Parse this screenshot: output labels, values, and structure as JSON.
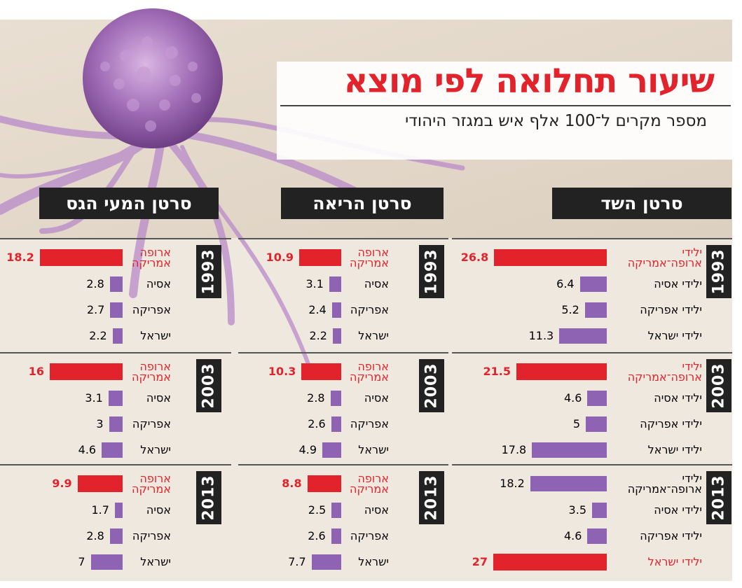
{
  "title": "שיעור תחלואה לפי מוצא",
  "subtitle": "מספר מקרים ל־100 אלף איש במגזר היהודי",
  "colors": {
    "red": "#e3232c",
    "purple": "#8e63b3",
    "dark": "#222222"
  },
  "chart_data": [
    {
      "type": "bar",
      "title": "סרטן השד",
      "panels": [
        {
          "year": "1993",
          "rows": [
            {
              "label": "ילידי ארופה־אמריקה",
              "value": 26.8,
              "highlight": true
            },
            {
              "label": "ילידי אסיה",
              "value": 6.4,
              "highlight": false
            },
            {
              "label": "ילידי אפריקה",
              "value": 5.2,
              "highlight": false
            },
            {
              "label": "ילידי ישראל",
              "value": 11.3,
              "highlight": false
            }
          ]
        },
        {
          "year": "2003",
          "rows": [
            {
              "label": "ילידי ארופה־אמריקה",
              "value": 21.5,
              "highlight": true
            },
            {
              "label": "ילידי אסיה",
              "value": 4.6,
              "highlight": false
            },
            {
              "label": "ילידי אפריקה",
              "value": 5,
              "highlight": false
            },
            {
              "label": "ילידי ישראל",
              "value": 17.8,
              "highlight": false
            }
          ]
        },
        {
          "year": "2013",
          "rows": [
            {
              "label": "ילידי ארופה־אמריקה",
              "value": 18.2,
              "highlight": false
            },
            {
              "label": "ילידי אסיה",
              "value": 3.5,
              "highlight": false
            },
            {
              "label": "ילידי אפריקה",
              "value": 4.6,
              "highlight": false
            },
            {
              "label": "ילידי ישראל",
              "value": 27,
              "highlight": true
            }
          ]
        }
      ]
    },
    {
      "type": "bar",
      "title": "סרטן הריאה",
      "panels": [
        {
          "year": "1993",
          "rows": [
            {
              "label": "ארופה אמריקה",
              "value": 10.9,
              "highlight": true
            },
            {
              "label": "אסיה",
              "value": 3.1,
              "highlight": false
            },
            {
              "label": "אפריקה",
              "value": 2.4,
              "highlight": false
            },
            {
              "label": "ישראל",
              "value": 2.2,
              "highlight": false
            }
          ]
        },
        {
          "year": "2003",
          "rows": [
            {
              "label": "ארופה אמריקה",
              "value": 10.3,
              "highlight": true
            },
            {
              "label": "אסיה",
              "value": 2.8,
              "highlight": false
            },
            {
              "label": "אפריקה",
              "value": 2.6,
              "highlight": false
            },
            {
              "label": "ישראל",
              "value": 4.9,
              "highlight": false
            }
          ]
        },
        {
          "year": "2013",
          "rows": [
            {
              "label": "ארופה אמריקה",
              "value": 8.8,
              "highlight": true
            },
            {
              "label": "אסיה",
              "value": 2.5,
              "highlight": false
            },
            {
              "label": "אפריקה",
              "value": 2.6,
              "highlight": false
            },
            {
              "label": "ישראל",
              "value": 7.7,
              "highlight": false
            }
          ]
        }
      ]
    },
    {
      "type": "bar",
      "title": "סרטן המעי הגס",
      "panels": [
        {
          "year": "1993",
          "rows": [
            {
              "label": "ארופה אמריקה",
              "value": 18.2,
              "highlight": true
            },
            {
              "label": "אסיה",
              "value": 2.8,
              "highlight": false
            },
            {
              "label": "אפריקה",
              "value": 2.7,
              "highlight": false
            },
            {
              "label": "ישראל",
              "value": 2.2,
              "highlight": false
            }
          ]
        },
        {
          "year": "2003",
          "rows": [
            {
              "label": "ארופה אמריקה",
              "value": 16,
              "highlight": true
            },
            {
              "label": "אסיה",
              "value": 3.1,
              "highlight": false
            },
            {
              "label": "אפריקה",
              "value": 3,
              "highlight": false
            },
            {
              "label": "ישראל",
              "value": 4.6,
              "highlight": false
            }
          ]
        },
        {
          "year": "2013",
          "rows": [
            {
              "label": "ארופה אמריקה",
              "value": 9.9,
              "highlight": true
            },
            {
              "label": "אסיה",
              "value": 1.7,
              "highlight": false
            },
            {
              "label": "אפריקה",
              "value": 2.8,
              "highlight": false
            },
            {
              "label": "ישראל",
              "value": 7,
              "highlight": false
            }
          ]
        }
      ]
    }
  ]
}
